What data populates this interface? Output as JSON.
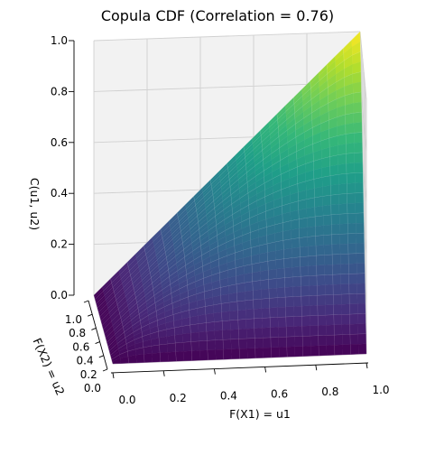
{
  "chart_data": {
    "type": "surface3d",
    "title": "Copula CDF (Correlation = 0.76)",
    "xlabel": "F(X1) = u1",
    "ylabel": "F(X2) = u2",
    "zlabel": "C(u1, u2)",
    "correlation": 0.76,
    "xlim": [
      0,
      1
    ],
    "ylim": [
      0,
      1
    ],
    "zlim": [
      0,
      1
    ],
    "x_ticks": [
      "0.0",
      "0.2",
      "0.4",
      "0.6",
      "0.8",
      "1.0"
    ],
    "y_ticks": [
      "0.0",
      "0.2",
      "0.4",
      "0.6",
      "0.8",
      "1.0"
    ],
    "z_ticks": [
      "0.0",
      "0.2",
      "0.4",
      "0.6",
      "0.8",
      "1.0"
    ],
    "colormap": "viridis",
    "grid": true,
    "view": "elevated, viewed from the u1 = 1 / u2 = 0 corner",
    "corner_values": [
      {
        "u1": 0,
        "u2": 0,
        "C": 0
      },
      {
        "u1": 1,
        "u2": 0,
        "C": 0
      },
      {
        "u1": 0,
        "u2": 1,
        "C": 0
      },
      {
        "u1": 1,
        "u2": 1,
        "C": 1
      }
    ]
  }
}
